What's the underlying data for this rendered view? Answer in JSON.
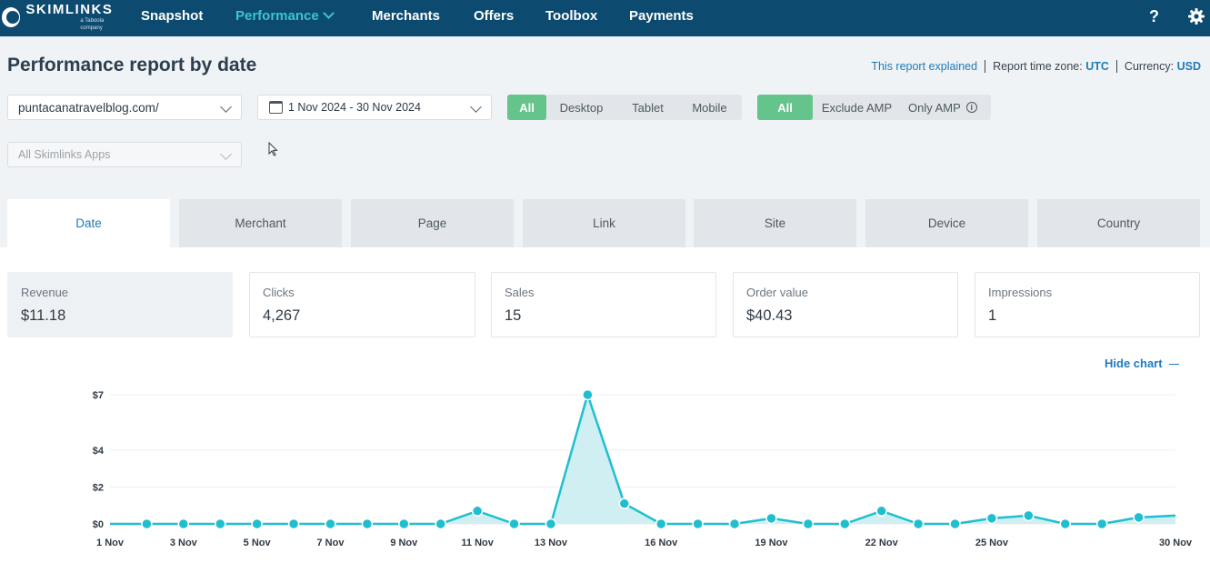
{
  "nav": {
    "logo_name": "SKIMLINKS",
    "logo_sub": "a Taboola company",
    "items": [
      "Snapshot",
      "Performance",
      "Merchants",
      "Offers",
      "Toolbox",
      "Payments"
    ],
    "active": "Performance",
    "help": "?"
  },
  "header": {
    "title": "Performance report by date",
    "explained": "This report explained",
    "timezone_label": "Report time zone:",
    "timezone_value": "UTC",
    "currency_label": "Currency:",
    "currency_value": "USD"
  },
  "filters": {
    "domain": "puntacanatravelblog.com/",
    "date_range": "1 Nov 2024 - 30 Nov 2024",
    "apps": "All Skimlinks Apps",
    "device": [
      "All",
      "Desktop",
      "Tablet",
      "Mobile"
    ],
    "amp": [
      "All",
      "Exclude AMP",
      "Only AMP"
    ],
    "info": "i"
  },
  "tabs": [
    "Date",
    "Merchant",
    "Page",
    "Link",
    "Site",
    "Device",
    "Country"
  ],
  "active_tab": "Date",
  "metrics": [
    {
      "label": "Revenue",
      "value": "$11.18"
    },
    {
      "label": "Clicks",
      "value": "4,267"
    },
    {
      "label": "Sales",
      "value": "15"
    },
    {
      "label": "Order value",
      "value": "$40.43"
    },
    {
      "label": "Impressions",
      "value": "1"
    }
  ],
  "hide_chart": "Hide chart",
  "chart_data": {
    "type": "area",
    "title": "",
    "xlabel": "",
    "ylabel": "",
    "series": [
      {
        "name": "Revenue",
        "color": "#1fbfcf"
      }
    ],
    "x": [
      "1 Nov",
      "2 Nov",
      "3 Nov",
      "4 Nov",
      "5 Nov",
      "6 Nov",
      "7 Nov",
      "8 Nov",
      "9 Nov",
      "10 Nov",
      "11 Nov",
      "12 Nov",
      "13 Nov",
      "14 Nov",
      "15 Nov",
      "16 Nov",
      "17 Nov",
      "18 Nov",
      "19 Nov",
      "20 Nov",
      "21 Nov",
      "22 Nov",
      "23 Nov",
      "24 Nov",
      "25 Nov",
      "26 Nov",
      "27 Nov",
      "28 Nov",
      "29 Nov",
      "30 Nov"
    ],
    "values": [
      0,
      0,
      0,
      0,
      0,
      0,
      0,
      0,
      0,
      0,
      0.7,
      0,
      0,
      7,
      1.1,
      0,
      0,
      0,
      0.3,
      0,
      0,
      0.7,
      0,
      0,
      0.3,
      0.45,
      0,
      0,
      0.35,
      0.45
    ],
    "markers": [
      false,
      true,
      true,
      true,
      true,
      true,
      true,
      true,
      true,
      true,
      true,
      true,
      true,
      true,
      true,
      true,
      true,
      true,
      true,
      true,
      true,
      true,
      true,
      true,
      true,
      true,
      true,
      true,
      true,
      false
    ],
    "x_tick_labels": [
      "1 Nov",
      "3 Nov",
      "5 Nov",
      "7 Nov",
      "9 Nov",
      "11 Nov",
      "13 Nov",
      "16 Nov",
      "19 Nov",
      "22 Nov",
      "25 Nov",
      "30 Nov"
    ],
    "x_tick_positions": [
      "1 Nov",
      "3 Nov",
      "5 Nov",
      "7 Nov",
      "9 Nov",
      "11 Nov",
      "13 Nov",
      "16 Nov",
      "19 Nov",
      "22 Nov",
      "25 Nov",
      "30 Nov"
    ],
    "y_ticks": [
      {
        "label": "$0",
        "value": 0
      },
      {
        "label": "$2",
        "value": 2
      },
      {
        "label": "$4",
        "value": 4
      },
      {
        "label": "$7",
        "value": 7
      }
    ],
    "ylim": [
      0,
      7
    ],
    "grid": true
  }
}
